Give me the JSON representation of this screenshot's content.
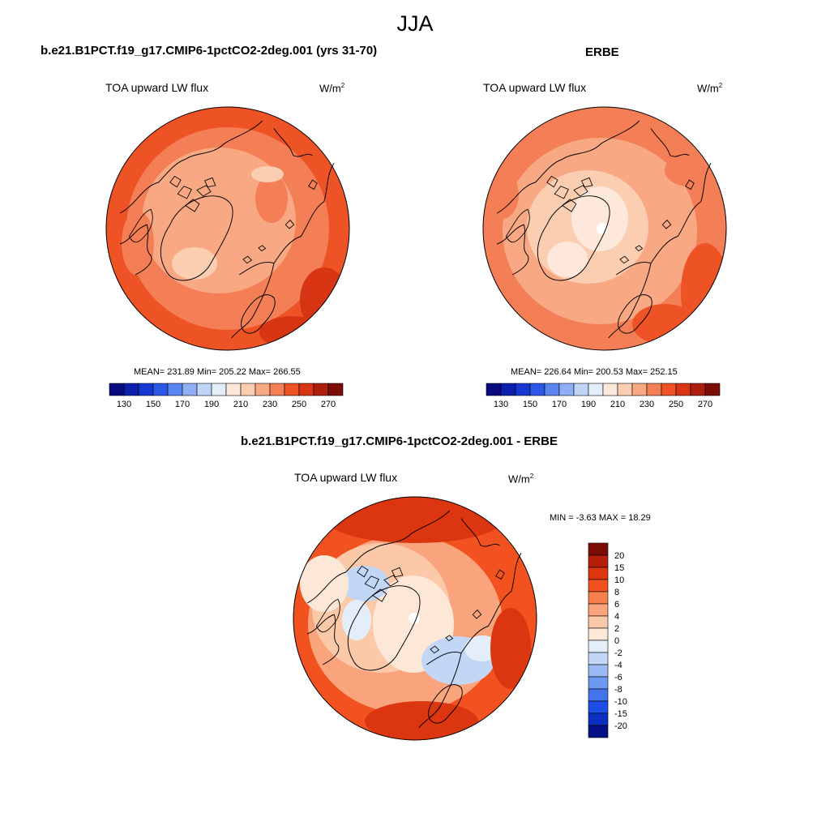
{
  "title": "JJA",
  "panels": [
    {
      "title": "b.e21.B1PCT.f19_g17.CMIP6-1pctCO2-2deg.001 (yrs 31-70)",
      "variable": "TOA upward LW flux",
      "units": "W/m",
      "units_sup": "2",
      "stats": "MEAN= 231.89  Min= 205.22  Max= 266.55"
    },
    {
      "title": "ERBE",
      "variable": "TOA upward LW flux",
      "units": "W/m",
      "units_sup": "2",
      "stats": "MEAN= 226.64  Min= 200.53  Max= 252.15"
    },
    {
      "title": "b.e21.B1PCT.f19_g17.CMIP6-1pctCO2-2deg.001 - ERBE",
      "variable": "TOA upward LW flux",
      "units": "W/m",
      "units_sup": "2",
      "stats": "MIN =  -3.63 MAX =  18.29"
    }
  ],
  "abs_colorbar": {
    "colors": [
      "#0a0a80",
      "#0c1faf",
      "#1638d0",
      "#2b56e6",
      "#5a85f0",
      "#8eaef5",
      "#c0d4f7",
      "#e3eefa",
      "#fde8db",
      "#fbcdb1",
      "#f8a883",
      "#f47e55",
      "#ee5326",
      "#d83514",
      "#ad1e0c",
      "#7b0c06"
    ],
    "tick_labels": [
      "130",
      "150",
      "170",
      "190",
      "210",
      "230",
      "250",
      "270"
    ]
  },
  "diff_colorbar": {
    "colors": [
      "#7b0c06",
      "#b51f0c",
      "#dc3611",
      "#f2521f",
      "#f67f4d",
      "#f9a47c",
      "#fbc9a8",
      "#fde7d7",
      "#e4eef9",
      "#c2d6f5",
      "#9ab9f3",
      "#6e99f0",
      "#4474ec",
      "#1d4fe6",
      "#0d2fc0",
      "#050f86"
    ],
    "tick_labels": [
      "20",
      "15",
      "10",
      "8",
      "6",
      "4",
      "2",
      "0",
      "-2",
      "-4",
      "-6",
      "-8",
      "-10",
      "-15",
      "-20"
    ]
  },
  "map_colors": {
    "warm_dark": "#e44a1e",
    "warm": "#f26430",
    "warm_mid": "#f6845a",
    "warm_light": "#f9a47f",
    "warm_pale": "#fcc7a8",
    "warm_palest": "#fde6d6",
    "cool_pale": "#dbe7f8",
    "cool": "#b7cff4",
    "coastline": "#000000"
  }
}
